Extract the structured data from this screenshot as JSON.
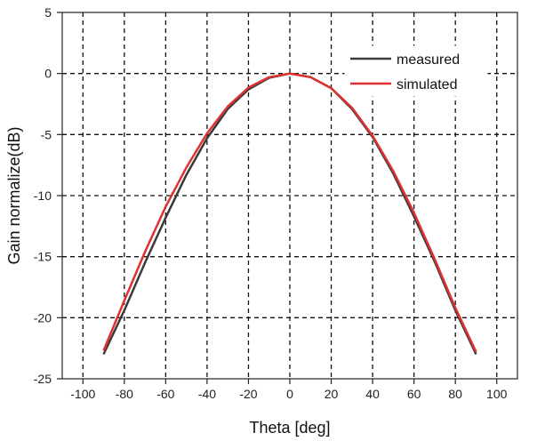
{
  "chart_data": {
    "type": "line",
    "title": "",
    "xlabel": "Theta [deg]",
    "ylabel": "Gain normalize(dB)",
    "xlim": [
      -110,
      110
    ],
    "ylim": [
      -25,
      5
    ],
    "xticks": [
      -100,
      -80,
      -60,
      -40,
      -20,
      0,
      20,
      40,
      60,
      80,
      100
    ],
    "yticks": [
      5,
      0,
      -5,
      -10,
      -15,
      -20,
      -25
    ],
    "grid": true,
    "legend_position": "top-right",
    "series": [
      {
        "name": "measured",
        "color": "#3a3a3a",
        "x": [
          -90,
          -80,
          -70,
          -60,
          -50,
          -40,
          -30,
          -20,
          -10,
          0,
          10,
          20,
          30,
          40,
          50,
          60,
          70,
          80,
          90
        ],
        "y": [
          -23.0,
          -19.4,
          -15.5,
          -11.8,
          -8.3,
          -5.3,
          -2.9,
          -1.3,
          -0.35,
          0,
          -0.3,
          -1.2,
          -2.9,
          -5.2,
          -8.2,
          -11.7,
          -15.4,
          -19.4,
          -23.0
        ]
      },
      {
        "name": "simulated",
        "color": "#e03030",
        "x": [
          -90,
          -80,
          -70,
          -60,
          -50,
          -40,
          -30,
          -20,
          -10,
          0,
          10,
          20,
          30,
          40,
          50,
          60,
          70,
          80,
          90
        ],
        "y": [
          -22.7,
          -18.6,
          -14.6,
          -10.9,
          -7.7,
          -4.9,
          -2.7,
          -1.15,
          -0.3,
          0,
          -0.3,
          -1.2,
          -2.8,
          -5.1,
          -8.0,
          -11.4,
          -15.2,
          -19.2,
          -22.8
        ]
      }
    ]
  }
}
